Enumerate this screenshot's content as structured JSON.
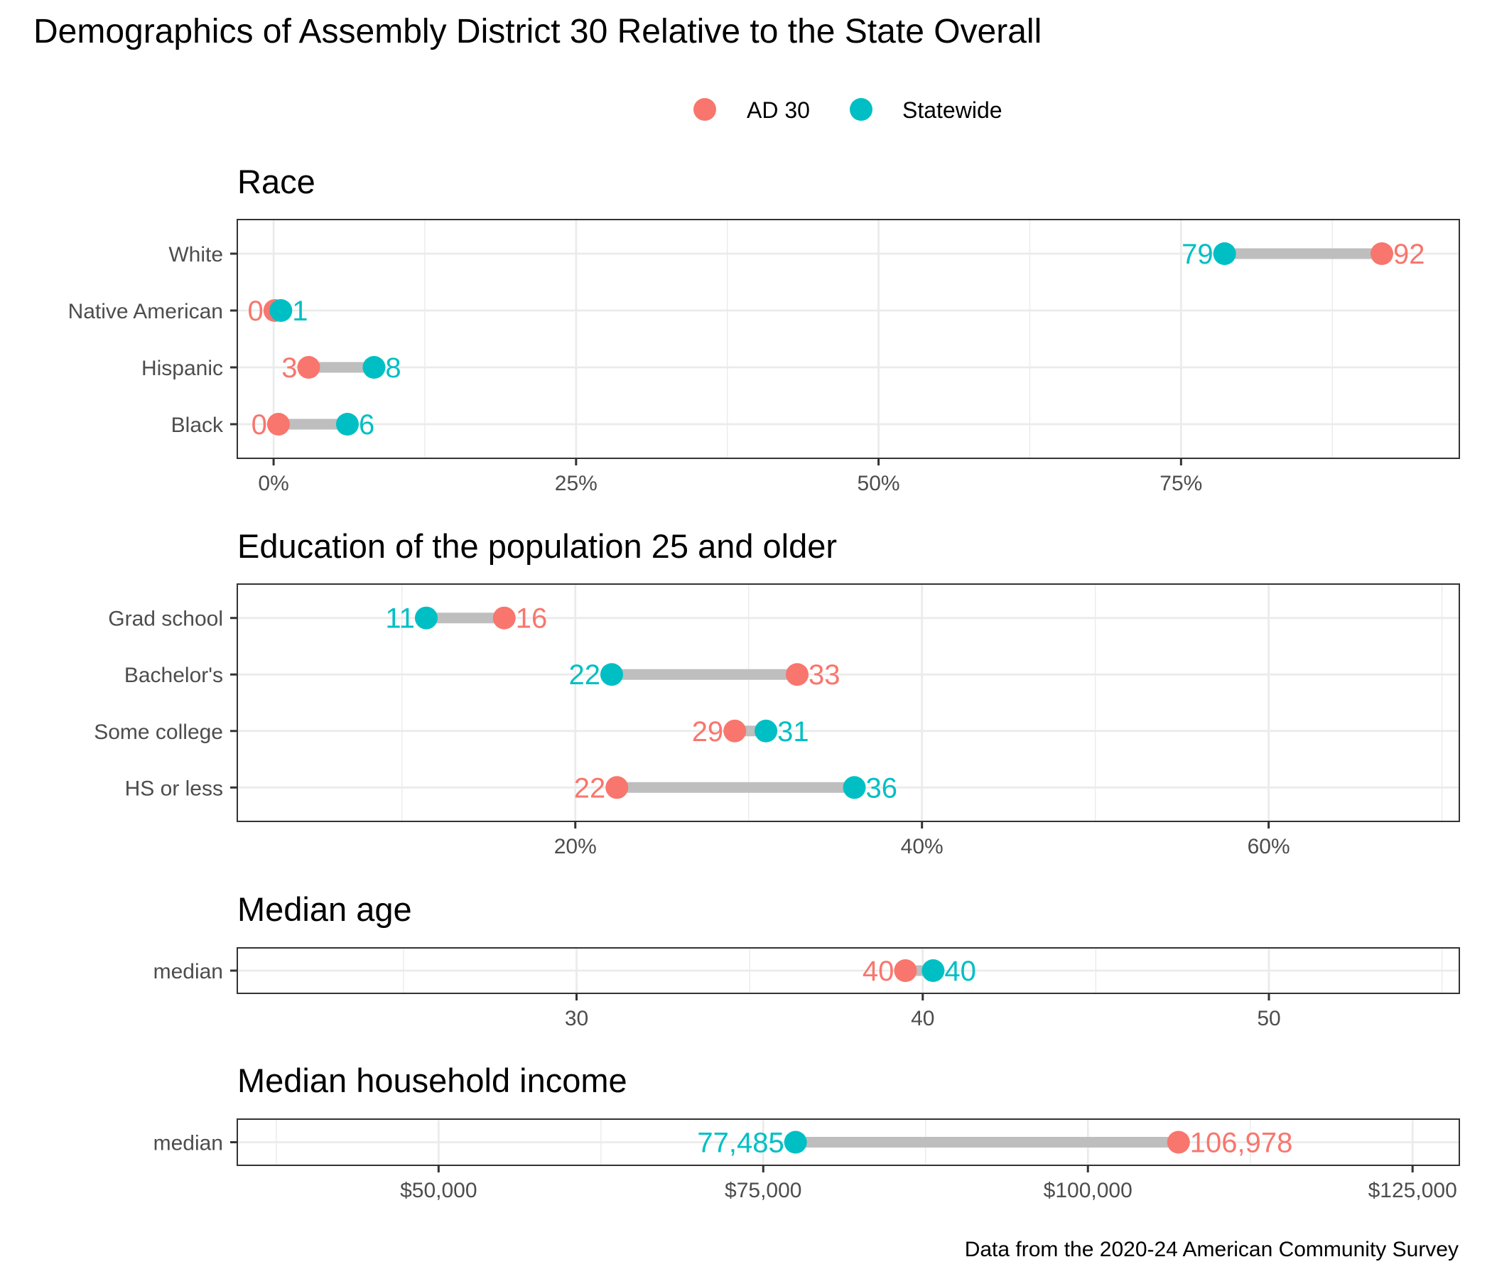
{
  "title": "Demographics of Assembly District 30 Relative to the State Overall",
  "caption": "Data from the 2020-24 American Community Survey",
  "colors": {
    "district": "#F8766D",
    "state": "#00BFC4",
    "segment": "#BEBEBE"
  },
  "legend": {
    "placement": "top-center",
    "items": [
      {
        "key": "district",
        "label": "AD 30"
      },
      {
        "key": "state",
        "label": "Statewide"
      }
    ]
  },
  "chart_data": [
    {
      "type": "dumbbell",
      "title": "Race",
      "xlabel": "",
      "ylabel": "",
      "xlim": [
        -3,
        98
      ],
      "x_ticks": [
        0,
        25,
        50,
        75
      ],
      "x_tick_labels": [
        "0%",
        "25%",
        "50%",
        "75%"
      ],
      "x_minor_ticks": [
        12.5,
        37.5,
        62.5,
        87.5
      ],
      "grid": true,
      "categories": [
        "White",
        "Native American",
        "Hispanic",
        "Black"
      ],
      "series": [
        {
          "name": "AD 30",
          "key": "district",
          "values": [
            91.6,
            0.1,
            2.9,
            0.4
          ],
          "labels": [
            "92",
            "0",
            "3",
            "0"
          ]
        },
        {
          "name": "Statewide",
          "key": "state",
          "values": [
            78.6,
            0.6,
            8.3,
            6.1
          ],
          "labels": [
            "79",
            "1",
            "8",
            "6"
          ]
        }
      ]
    },
    {
      "type": "dumbbell",
      "title": "Education of the population 25 and older",
      "xlabel": "",
      "ylabel": "",
      "xlim": [
        0.5,
        71
      ],
      "x_ticks": [
        20,
        40,
        60
      ],
      "x_tick_labels": [
        "20%",
        "40%",
        "60%"
      ],
      "x_minor_ticks": [
        10,
        30,
        50,
        70
      ],
      "grid": true,
      "categories": [
        "Grad school",
        "Bachelor's",
        "Some college",
        "HS or less"
      ],
      "series": [
        {
          "name": "AD 30",
          "key": "district",
          "values": [
            15.9,
            32.8,
            29.2,
            22.4
          ],
          "labels": [
            "16",
            "33",
            "29",
            "22"
          ]
        },
        {
          "name": "Statewide",
          "key": "state",
          "values": [
            11.4,
            22.1,
            31.0,
            36.1
          ],
          "labels": [
            "11",
            "22",
            "31",
            "36"
          ]
        }
      ]
    },
    {
      "type": "dumbbell",
      "title": "Median age",
      "xlabel": "",
      "ylabel": "",
      "xlim": [
        20.2,
        55.5
      ],
      "x_ticks": [
        30,
        40,
        50
      ],
      "x_tick_labels": [
        "30",
        "40",
        "50"
      ],
      "x_minor_ticks": [
        25,
        35,
        45,
        55
      ],
      "grid": true,
      "categories": [
        "median"
      ],
      "series": [
        {
          "name": "AD 30",
          "key": "district",
          "values": [
            39.5
          ],
          "labels": [
            "40"
          ]
        },
        {
          "name": "Statewide",
          "key": "state",
          "values": [
            40.3
          ],
          "labels": [
            "40"
          ]
        }
      ]
    },
    {
      "type": "dumbbell",
      "title": "Median household income",
      "xlabel": "",
      "ylabel": "",
      "xlim": [
        34500,
        128600
      ],
      "x_ticks": [
        50000,
        75000,
        100000,
        125000
      ],
      "x_tick_labels": [
        "$50,000",
        "$75,000",
        "$100,000",
        "$125,000"
      ],
      "x_minor_ticks": [
        37500,
        62500,
        87500,
        112500
      ],
      "grid": true,
      "categories": [
        "median"
      ],
      "series": [
        {
          "name": "AD 30",
          "key": "district",
          "values": [
            106978
          ],
          "labels": [
            "106,978"
          ]
        },
        {
          "name": "Statewide",
          "key": "state",
          "values": [
            77485
          ],
          "labels": [
            "77,485"
          ]
        }
      ]
    }
  ]
}
